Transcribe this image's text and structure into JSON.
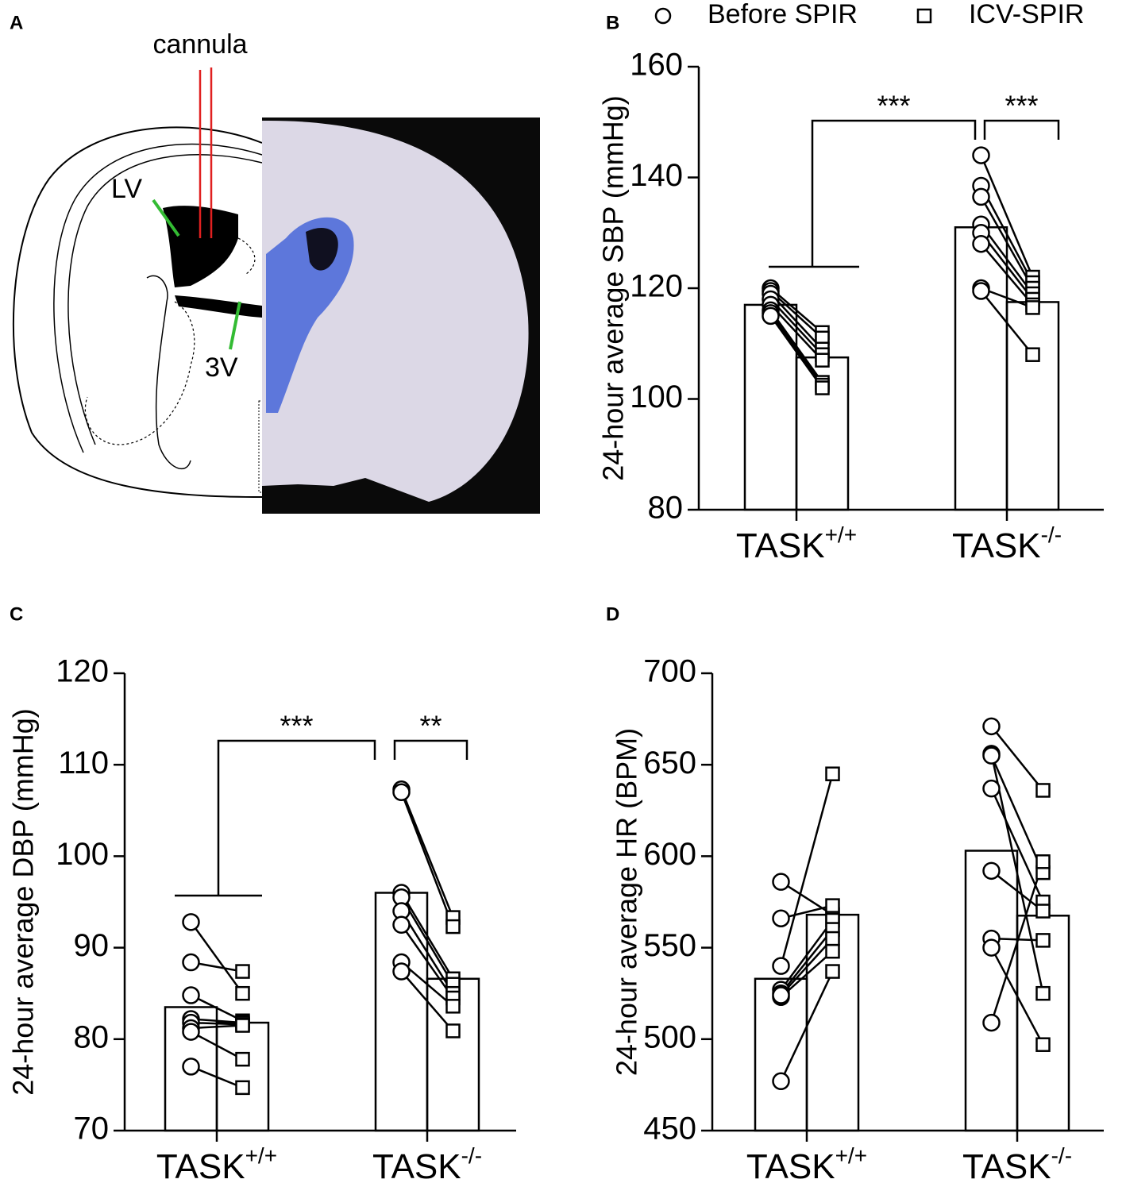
{
  "panel_a": {
    "label": "A",
    "annotations": [
      "cannula",
      "LV",
      "3V"
    ]
  },
  "chart_data": [
    {
      "type": "bar",
      "label": "B",
      "ylabel": "24-hour average SBP (mmHg)",
      "legend": true,
      "categories": [
        "TASK+/+",
        "TASK-/-"
      ],
      "series": [
        {
          "name": "Before SPIR",
          "marker": "circle",
          "color": "#000000",
          "values": [
            117,
            131
          ],
          "points": [
            [
              120,
              119.5,
              119,
              118,
              117,
              116,
              115.5,
              115
            ],
            [
              144,
              138.5,
              136.5,
              131.5,
              130,
              128,
              120,
              119.5
            ]
          ]
        },
        {
          "name": "ICV-SPIR",
          "marker": "square",
          "color": "#000000",
          "values": [
            107.5,
            117.5
          ],
          "points": [
            [
              112,
              111,
              109,
              108,
              107,
              103,
              102.5,
              102
            ],
            [
              122,
              121,
              120,
              119,
              118,
              117,
              116.5,
              108
            ]
          ]
        }
      ],
      "ylim": [
        80,
        160
      ],
      "yticks": [
        80,
        100,
        120,
        140,
        160
      ],
      "annotations": [
        "***",
        "***"
      ]
    },
    {
      "type": "bar",
      "label": "C",
      "ylabel": "24-hour average DBP (mmHg)",
      "categories": [
        "TASK+/+",
        "TASK-/-"
      ],
      "series": [
        {
          "marker": "circle",
          "color": "#000000",
          "values": [
            83.5,
            96
          ],
          "points": [
            [
              92.8,
              88.4,
              84.8,
              82.2,
              81.8,
              81.2,
              80.8,
              77
            ],
            [
              107.3,
              107,
              96,
              95.5,
              94,
              92.5,
              88.4,
              87.4
            ]
          ]
        },
        {
          "marker": "square",
          "color": "#000000",
          "values": [
            81.8,
            86.6
          ],
          "points": [
            [
              85,
              87.4,
              82,
              81.8,
              81.6,
              81.5,
              77.8,
              74.7
            ],
            [
              93.3,
              92.3,
              86.6,
              86,
              85,
              84.5,
              83.6,
              80.9
            ]
          ]
        }
      ],
      "ylim": [
        70,
        120
      ],
      "yticks": [
        70,
        80,
        90,
        100,
        110,
        120
      ],
      "annotations": [
        "***",
        "**"
      ]
    },
    {
      "type": "bar",
      "label": "D",
      "ylabel": "24-hour average HR (BPM)",
      "categories": [
        "TASK+/+",
        "TASK-/-"
      ],
      "series": [
        {
          "marker": "circle",
          "color": "#000000",
          "values": [
            533,
            603
          ],
          "points": [
            [
              586,
              566,
              540,
              527,
              525,
              523,
              524,
              477
            ],
            [
              671,
              656,
              655,
              637,
              592,
              555,
              550,
              509
            ]
          ]
        },
        {
          "marker": "square",
          "color": "#000000",
          "values": [
            568,
            567.5
          ],
          "points": [
            [
              568,
              573,
              645,
              565,
              560,
              548,
              555,
              537
            ],
            [
              636,
              525,
              591,
              575,
              570,
              554,
              497,
              597
            ]
          ]
        }
      ],
      "ylim": [
        450,
        700
      ],
      "yticks": [
        450,
        500,
        550,
        600,
        650,
        700
      ],
      "annotations": []
    }
  ]
}
